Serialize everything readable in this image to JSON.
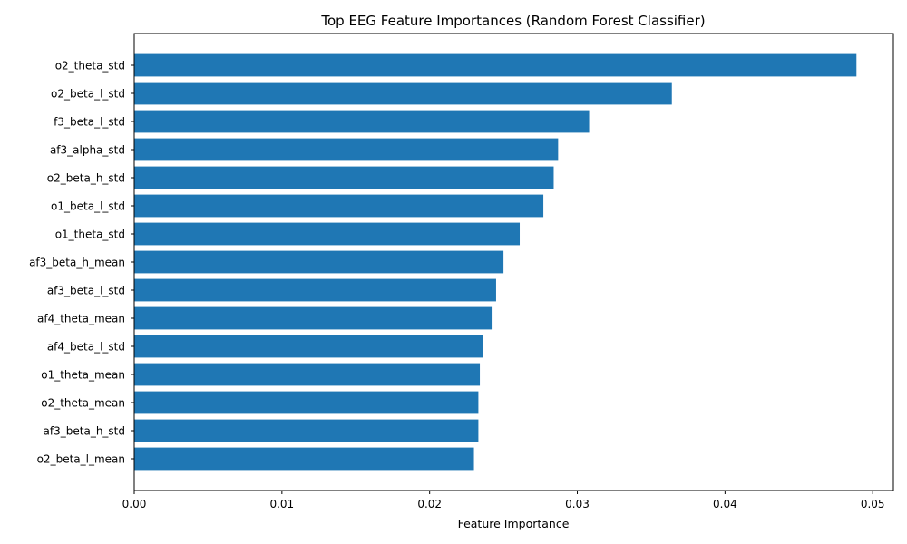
{
  "chart_data": {
    "type": "bar",
    "orientation": "horizontal",
    "title": "Top EEG Feature Importances (Random Forest Classifier)",
    "xlabel": "Feature Importance",
    "ylabel": "",
    "xlim": [
      0,
      0.0514
    ],
    "xticks": [
      0.0,
      0.01,
      0.02,
      0.03,
      0.04,
      0.05
    ],
    "xtick_labels": [
      "0.00",
      "0.01",
      "0.02",
      "0.03",
      "0.04",
      "0.05"
    ],
    "grid": false,
    "legend": "none",
    "bar_color": "#1f77b4",
    "categories": [
      "o2_theta_std",
      "o2_beta_l_std",
      "f3_beta_l_std",
      "af3_alpha_std",
      "o2_beta_h_std",
      "o1_beta_l_std",
      "o1_theta_std",
      "af3_beta_h_mean",
      "af3_beta_l_std",
      "af4_theta_mean",
      "af4_beta_l_std",
      "o1_theta_mean",
      "o2_theta_mean",
      "af3_beta_h_std",
      "o2_beta_l_mean"
    ],
    "values": [
      0.0489,
      0.0364,
      0.0308,
      0.0287,
      0.0284,
      0.0277,
      0.0261,
      0.025,
      0.0245,
      0.0242,
      0.0236,
      0.0234,
      0.0233,
      0.0233,
      0.023
    ]
  }
}
